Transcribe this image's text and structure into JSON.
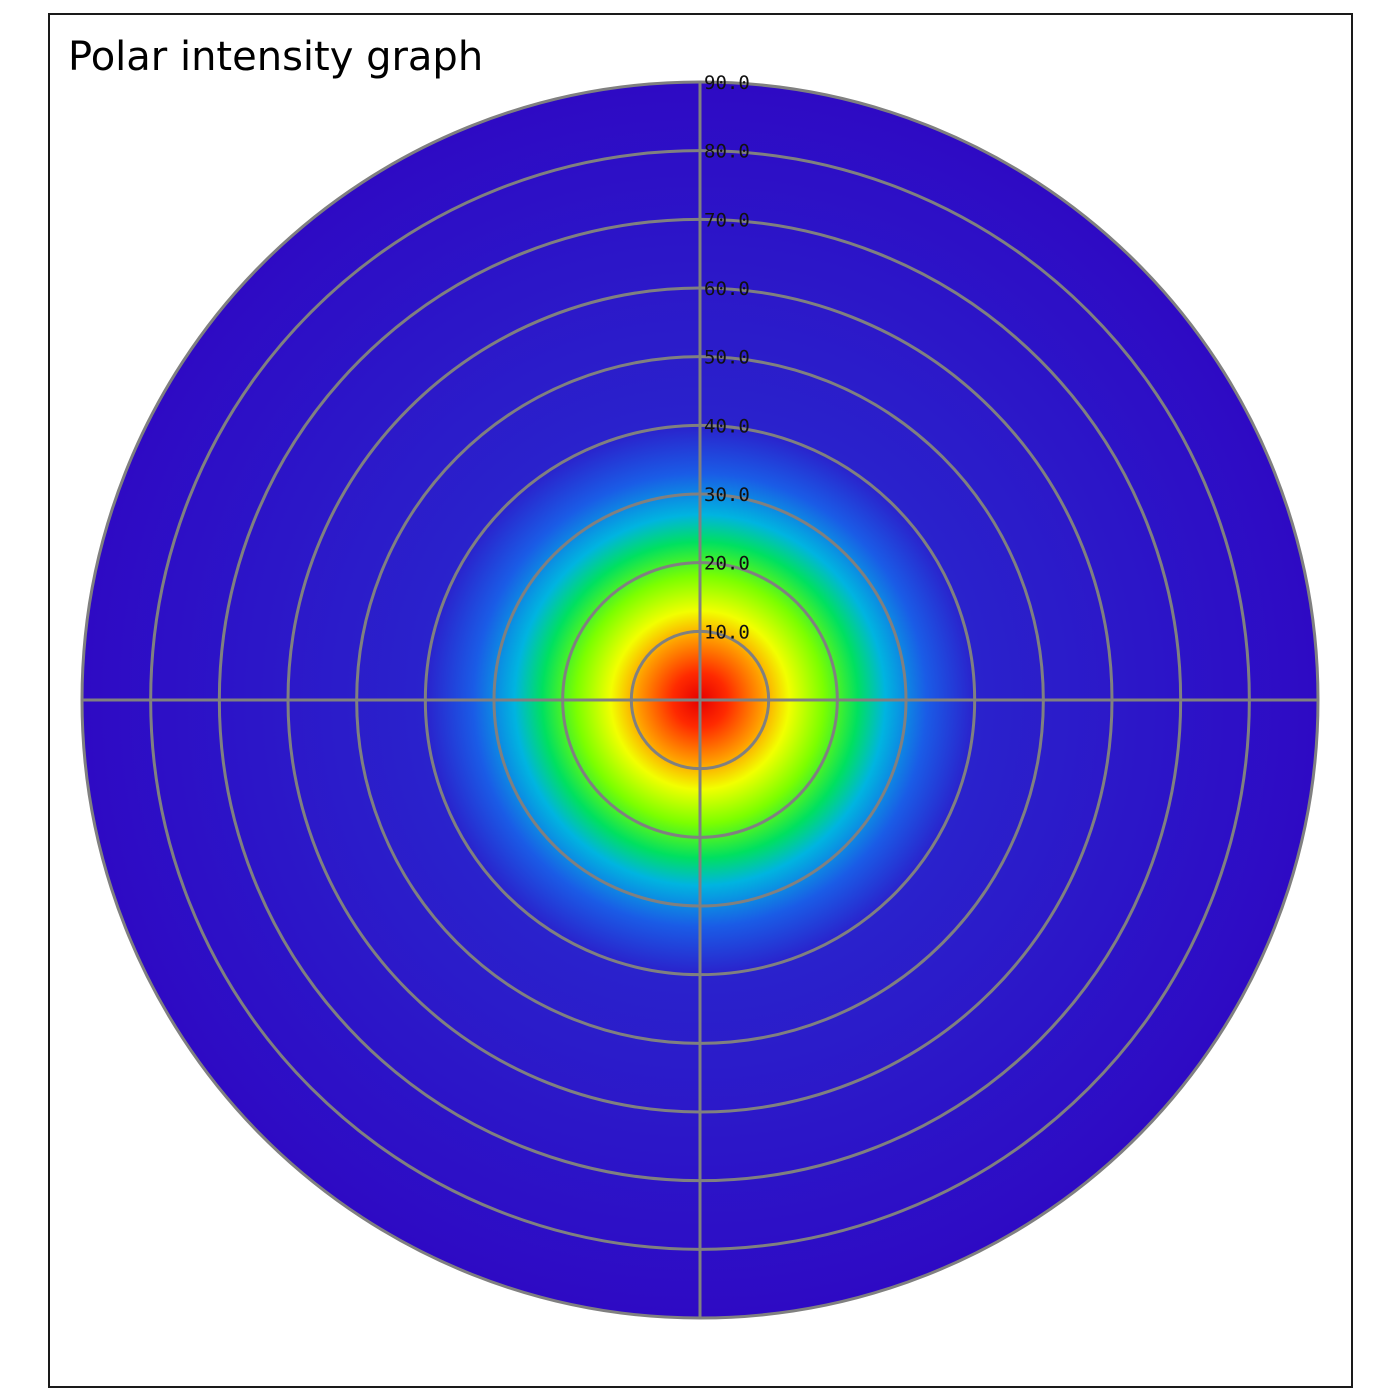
{
  "chart_data": {
    "type": "heatmap",
    "subtype": "polar",
    "title": "Polar intensity graph",
    "radial_axis": {
      "min": 0,
      "max": 90,
      "ticks": [
        10,
        20,
        30,
        40,
        50,
        60,
        70,
        80,
        90
      ],
      "tick_labels": [
        "10.0",
        "20.0",
        "30.0",
        "40.0",
        "50.0",
        "60.0",
        "70.0",
        "80.0",
        "90.0"
      ]
    },
    "grid": true,
    "colormap": [
      {
        "value": 0,
        "color": "#e60000"
      },
      {
        "value": 4,
        "color": "#ff2a00"
      },
      {
        "value": 9,
        "color": "#ff9a00"
      },
      {
        "value": 13,
        "color": "#f2ff00"
      },
      {
        "value": 18,
        "color": "#7cff00"
      },
      {
        "value": 23,
        "color": "#00e060"
      },
      {
        "value": 27,
        "color": "#00b4e0"
      },
      {
        "value": 33,
        "color": "#1a5ce6"
      },
      {
        "value": 40,
        "color": "#2a22cc"
      },
      {
        "value": 90,
        "color": "#2e0ac4"
      }
    ],
    "grid_color": "#808080",
    "background_color": "#2e0ac4"
  }
}
